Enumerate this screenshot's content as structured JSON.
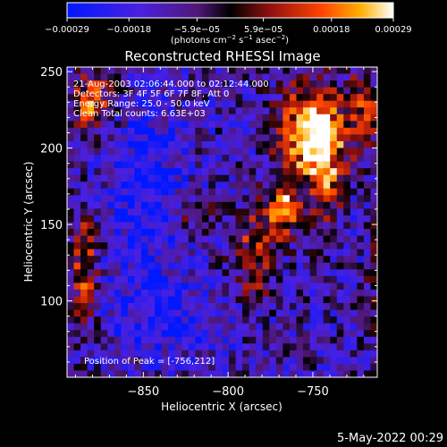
{
  "chart_data": {
    "type": "heatmap",
    "title": "Reconstructed RHESSI Image",
    "xlabel": "Heliocentric X (arcsec)",
    "ylabel": "Heliocentric Y (arcsec)",
    "xlim": [
      -895,
      -712
    ],
    "ylim": [
      50,
      253
    ],
    "x_ticks": [
      -850,
      -800,
      -750
    ],
    "y_ticks": [
      100,
      150,
      200,
      250
    ],
    "x_tick_labels": [
      "−850",
      "−800",
      "−750"
    ],
    "y_tick_labels": [
      "100",
      "150",
      "200",
      "250"
    ],
    "colorbar": {
      "range": [
        -0.00029,
        0.00029
      ],
      "ticks": [
        -0.00029,
        -0.00018,
        -5.9e-05,
        5.9e-05,
        0.00018,
        0.00029
      ],
      "tick_labels": [
        "−0.00029",
        "−0.00018",
        "−5.9e−05",
        "5.9e−05",
        "0.00018",
        "0.00029"
      ],
      "units_prefix": "(photons cm",
      "units_exp1": "−2",
      "units_mid": " s",
      "units_exp2": "−1",
      "units_mid2": " asec",
      "units_exp3": "−2",
      "units_suffix": ")"
    },
    "annotations": [
      "21-Aug-2003 02:06:44.000 to 02:12:44.000",
      "Detectors: 3F 4F 5F 6F 7F 8F, Att 0",
      "Energy Range: 25.0 - 50.0 keV",
      "Clean     Total counts: 6.63E+03"
    ],
    "peak_label": "Position of Peak = [-756,212]",
    "peak": [
      -756,
      212
    ],
    "colors": {
      "low": "#0000ff",
      "mid": "#000000",
      "high": "#ffffff"
    }
  },
  "footer": {
    "date": "5-May-2022 00:29"
  }
}
